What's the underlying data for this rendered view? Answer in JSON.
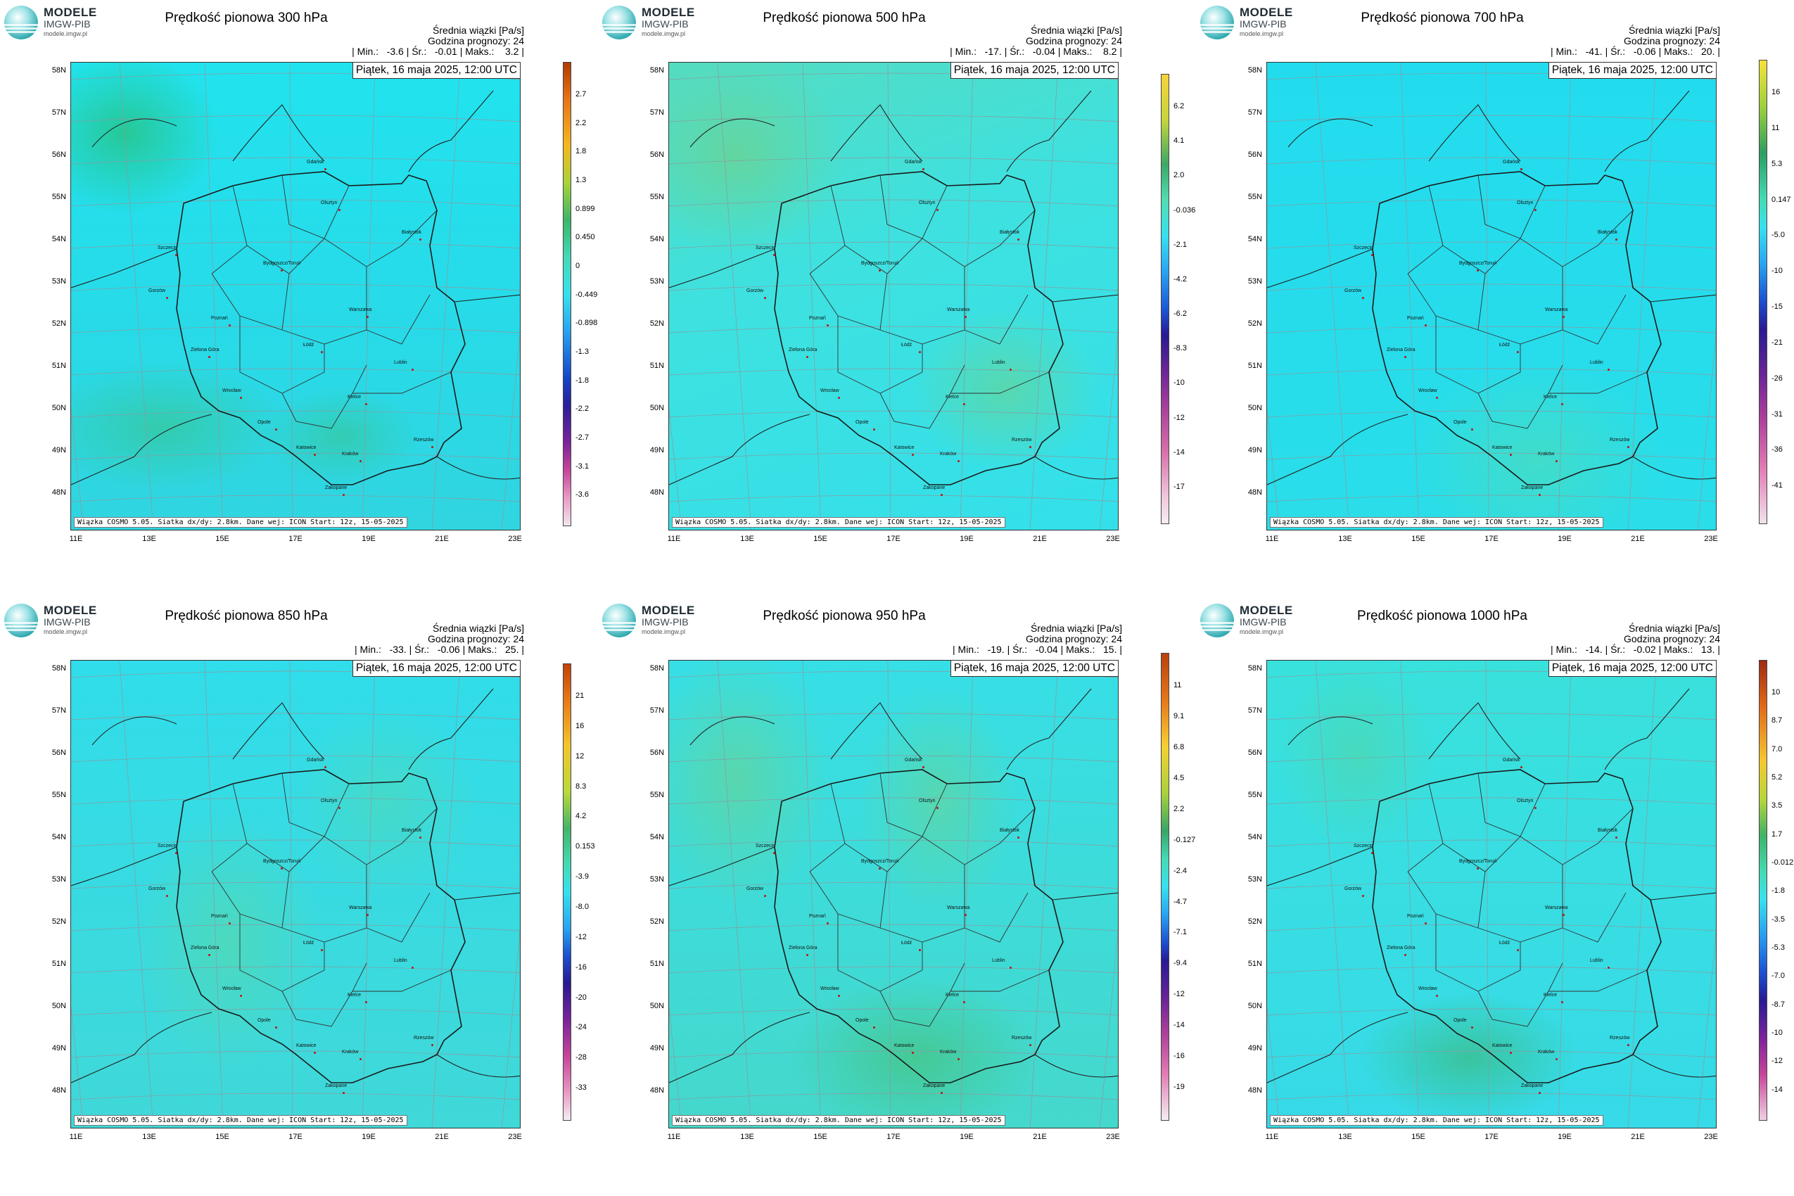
{
  "logo": {
    "line1": "MODELE",
    "line2": "IMGW-PIB",
    "line3": "modele.imgw.pl",
    "icon": "imgw-globe-logo"
  },
  "common": {
    "subtitle": "Średnia wiązki [Pa/s]",
    "forecast_hour": "Godzina prognozy: 24",
    "date": "Piątek, 16 maja 2025, 12:00 UTC",
    "footer": "Wiązka COSMO 5.05. Siatka dx/dy: 2.8km. Dane wej: ICON Start: 12z, 15-05-2025",
    "lat_labels": [
      "58N",
      "57N",
      "56N",
      "55N",
      "54N",
      "53N",
      "52N",
      "51N",
      "50N",
      "49N",
      "48N"
    ],
    "lon_labels": [
      "11E",
      "13E",
      "15E",
      "17E",
      "19E",
      "21E",
      "23E"
    ],
    "cities": [
      "Gdańsk",
      "Olsztyn",
      "Białystok",
      "Szczecin",
      "Bydgoszcz/Toruń",
      "Gorzów",
      "Poznań",
      "Warszawa",
      "Zielona Góra",
      "Łódź",
      "Lublin",
      "Wrocław",
      "Kielce",
      "Opole",
      "Katowice",
      "Kraków",
      "Rzeszów",
      "Zakopane"
    ]
  },
  "panels": [
    {
      "title": "Prędkość pionowa 300 hPa",
      "stats": "| Min.:   -3.6 | Śr.:   -0.01 | Maks.:    3.2 |",
      "colorbar": [
        "2.7",
        "2.2",
        "1.8",
        "1.3",
        "0.899",
        "0.450",
        "0",
        "-0.449",
        "-0.898",
        "-1.3",
        "-1.8",
        "-2.2",
        "-2.7",
        "-3.1",
        "-3.6"
      ]
    },
    {
      "title": "Prędkość pionowa 500 hPa",
      "stats": "| Min.:   -17. | Śr.:   -0.04 | Maks.:    8.2 |",
      "colorbar": [
        "6.2",
        "4.1",
        "2.0",
        "-0.036",
        "-2.1",
        "-4.2",
        "-6.2",
        "-8.3",
        "-10",
        "-12",
        "-14",
        "-17"
      ]
    },
    {
      "title": "Prędkość pionowa 700 hPa",
      "stats": "| Min.:   -41. | Śr.:   -0.06 | Maks.:   20. |",
      "colorbar": [
        "16",
        "11",
        "5.3",
        "0.147",
        "-5.0",
        "-10",
        "-15",
        "-21",
        "-26",
        "-31",
        "-36",
        "-41"
      ]
    },
    {
      "title": "Prędkość pionowa 850 hPa",
      "stats": "| Min.:   -33. | Śr.:   -0.06 | Maks.:   25. |",
      "colorbar": [
        "21",
        "16",
        "12",
        "8.3",
        "4.2",
        "0.153",
        "-3.9",
        "-8.0",
        "-12",
        "-16",
        "-20",
        "-24",
        "-28",
        "-33"
      ]
    },
    {
      "title": "Prędkość pionowa 950 hPa",
      "stats": "| Min.:   -19. | Śr.:   -0.04 | Maks.:   15. |",
      "colorbar": [
        "11",
        "9.1",
        "6.8",
        "4.5",
        "2.2",
        "-0.127",
        "-2.4",
        "-4.7",
        "-7.1",
        "-9.4",
        "-12",
        "-14",
        "-16",
        "-19"
      ]
    },
    {
      "title": "Prędkość pionowa 1000 hPa",
      "stats": "| Min.:   -14. | Śr.:   -0.02 | Maks.:   13. |",
      "colorbar": [
        "10",
        "8.7",
        "7.0",
        "5.2",
        "3.5",
        "1.7",
        "-0.012",
        "-1.8",
        "-3.5",
        "-5.3",
        "-7.0",
        "-8.7",
        "-10",
        "-12",
        "-14"
      ]
    }
  ]
}
